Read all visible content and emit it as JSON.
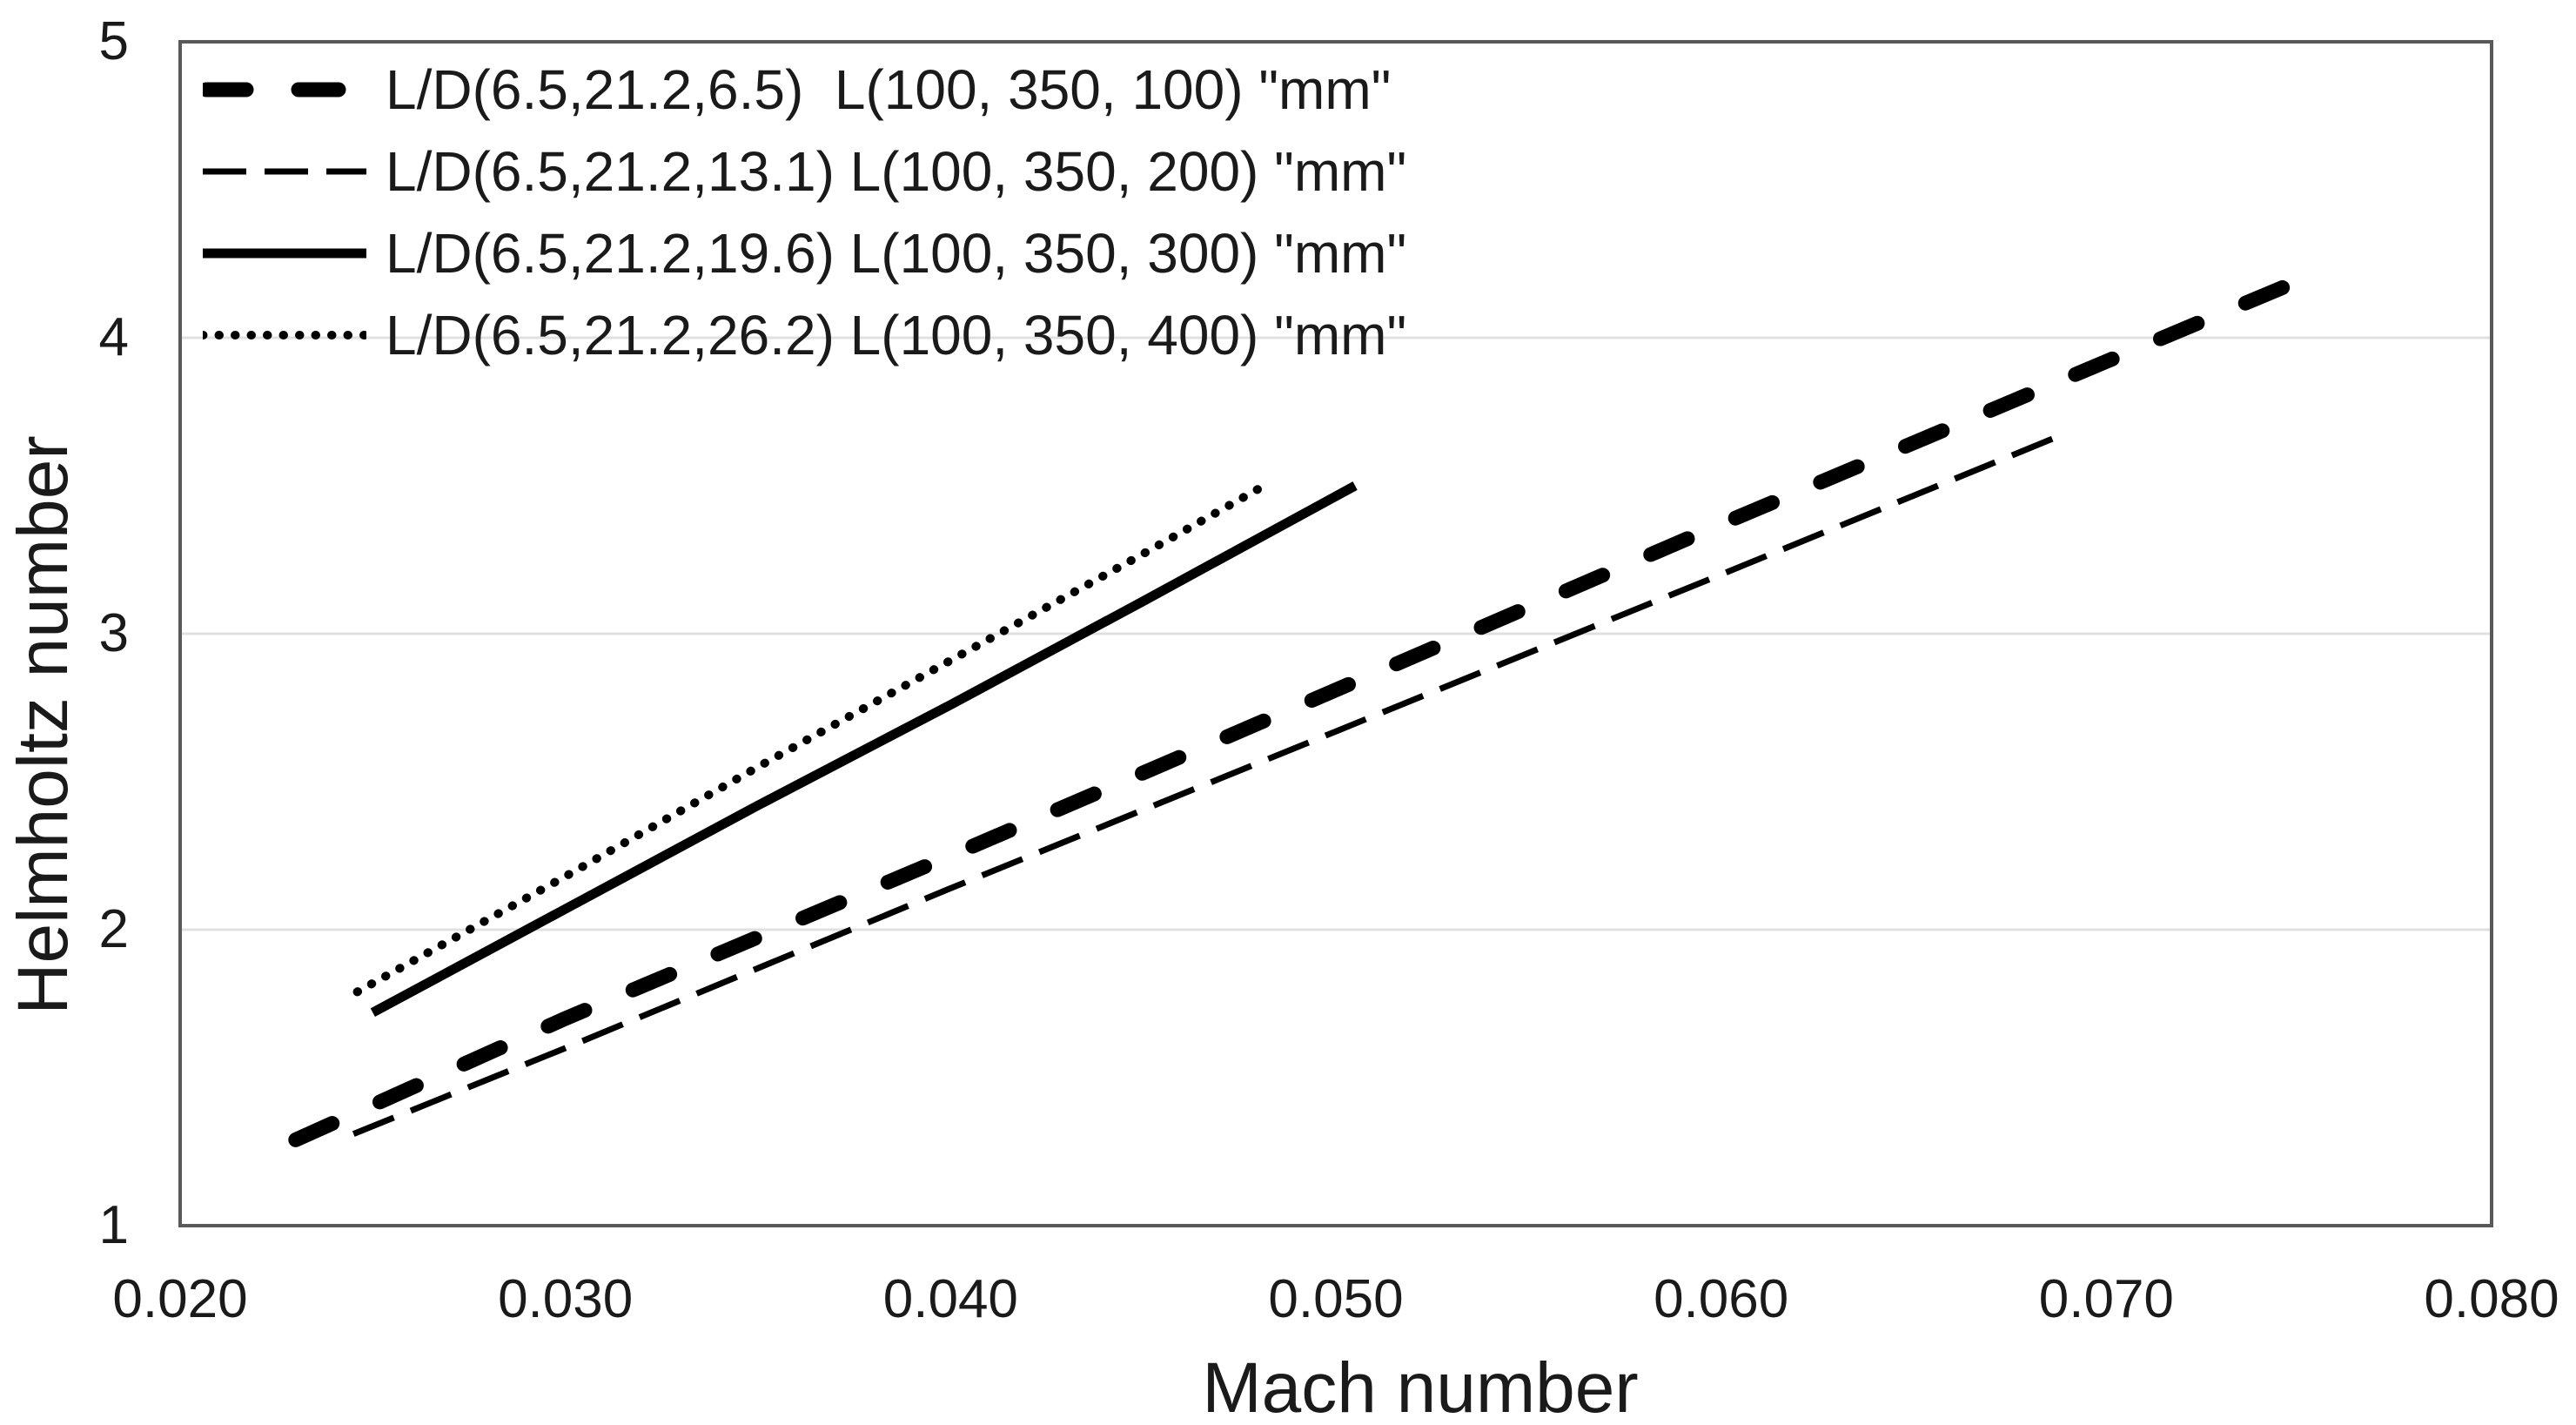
{
  "chart_data": {
    "type": "line",
    "title": "",
    "xlabel": "Mach number",
    "ylabel": "Helmholtz number",
    "xlim": [
      0.02,
      0.08
    ],
    "ylim": [
      1,
      5
    ],
    "grid": "horizontal-major",
    "gridlines_y": [
      2,
      3,
      4
    ],
    "legend_position": "top-left-inside",
    "colors": {
      "series": "#000000",
      "axis_line": "#595959",
      "gridline": "#e0e0e0",
      "text": "#1a1a1a"
    },
    "x_ticks": [
      {
        "v": 0.02,
        "label": "0.020"
      },
      {
        "v": 0.03,
        "label": "0.030"
      },
      {
        "v": 0.04,
        "label": "0.040"
      },
      {
        "v": 0.05,
        "label": "0.050"
      },
      {
        "v": 0.06,
        "label": "0.060"
      },
      {
        "v": 0.07,
        "label": "0.070"
      },
      {
        "v": 0.08,
        "label": "0.080"
      }
    ],
    "y_ticks": [
      {
        "v": 5,
        "label": "5"
      },
      {
        "v": 4,
        "label": "4"
      },
      {
        "v": 3,
        "label": "3"
      },
      {
        "v": 2,
        "label": "2"
      },
      {
        "v": 1,
        "label": "1"
      }
    ],
    "series": [
      {
        "name": "L/D(6.5,21.2,6.5)  L(100, 350, 100) \"mm\"",
        "style": "thick-dash",
        "points": [
          [
            0.023,
            1.29
          ],
          [
            0.03,
            1.7
          ],
          [
            0.04,
            2.25
          ],
          [
            0.05,
            2.81
          ],
          [
            0.06,
            3.37
          ],
          [
            0.07,
            3.92
          ],
          [
            0.0755,
            4.22
          ]
        ]
      },
      {
        "name": "L/D(6.5,21.2,13.1) L(100, 350, 200) \"mm\"",
        "style": "thin-dash",
        "points": [
          [
            0.0245,
            1.31
          ],
          [
            0.03,
            1.6
          ],
          [
            0.04,
            2.14
          ],
          [
            0.05,
            2.67
          ],
          [
            0.06,
            3.2
          ],
          [
            0.069,
            3.68
          ]
        ]
      },
      {
        "name": "L/D(6.5,21.2,19.6) L(100, 350, 300) \"mm\"",
        "style": "solid",
        "points": [
          [
            0.025,
            1.72
          ],
          [
            0.03,
            2.07
          ],
          [
            0.035,
            2.42
          ],
          [
            0.04,
            2.76
          ],
          [
            0.045,
            3.11
          ],
          [
            0.0505,
            3.5
          ]
        ]
      },
      {
        "name": "L/D(6.5,21.2,26.2) L(100, 350, 400) \"mm\"",
        "style": "dot",
        "points": [
          [
            0.0246,
            1.79
          ],
          [
            0.03,
            2.18
          ],
          [
            0.035,
            2.55
          ],
          [
            0.04,
            2.91
          ],
          [
            0.045,
            3.27
          ],
          [
            0.048,
            3.49
          ]
        ]
      }
    ]
  }
}
